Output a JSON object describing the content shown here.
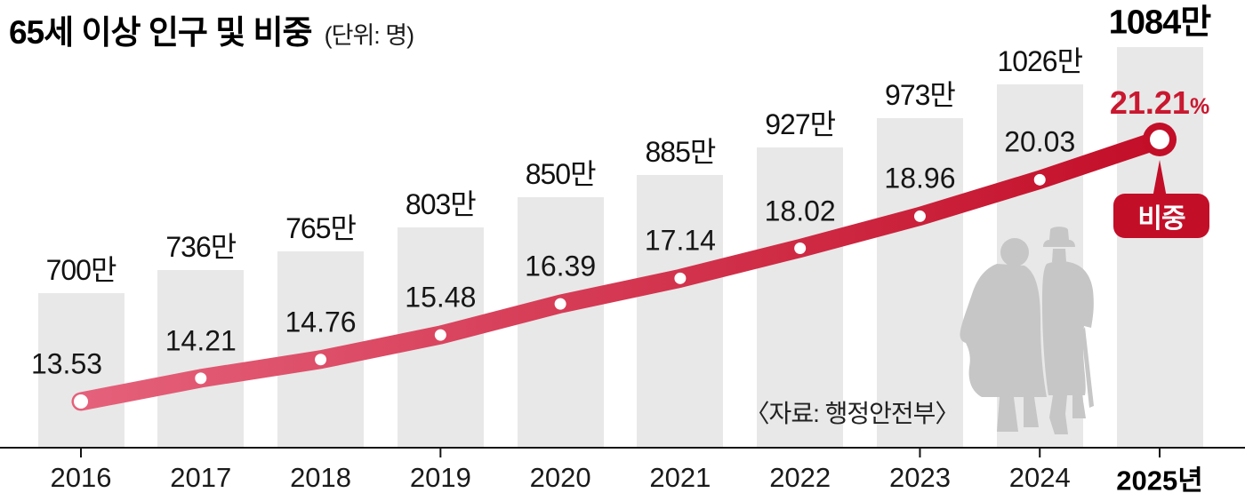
{
  "title": {
    "text": "65세 이상 인구 및 비중",
    "unit": "(단위: 명)"
  },
  "source": "〈자료: 행정안전부〉",
  "badge_label": "비중",
  "chart_data": {
    "type": "bar",
    "combo": "bar+line",
    "title": "65세 이상 인구 및 비중",
    "unit": "명",
    "categories": [
      "2016",
      "2017",
      "2018",
      "2019",
      "2020",
      "2021",
      "2022",
      "2023",
      "2024",
      "2025"
    ],
    "x_axis_labels": [
      "2016",
      "2017",
      "2018",
      "2019",
      "2020",
      "2021",
      "2022",
      "2023",
      "2024",
      "2025년"
    ],
    "grid": false,
    "legend_position": "none",
    "series": [
      {
        "name": "65세 이상 인구",
        "type": "bar",
        "unit": "만 명",
        "values": [
          700,
          736,
          765,
          803,
          850,
          885,
          927,
          973,
          1026,
          1084
        ],
        "labels": [
          "700만",
          "736만",
          "765만",
          "803만",
          "850만",
          "885만",
          "927만",
          "973만",
          "1026만",
          "1084만"
        ]
      },
      {
        "name": "비중",
        "type": "line",
        "unit": "%",
        "values": [
          13.53,
          14.21,
          14.76,
          15.48,
          16.39,
          17.14,
          18.02,
          18.96,
          20.03,
          21.21
        ],
        "labels": [
          "13.53",
          "14.21",
          "14.76",
          "15.48",
          "16.39",
          "17.14",
          "18.02",
          "18.96",
          "20.03",
          "21.21"
        ],
        "final_suffix": "%"
      }
    ]
  },
  "colors": {
    "bar": "#e8e8e8",
    "line_start": "#e5617b",
    "line_end": "#c30e28",
    "accent_red": "#c30e28",
    "percent_text_red": "#c9182f",
    "text": "#111111",
    "silhouette": "#c6c6c6"
  }
}
